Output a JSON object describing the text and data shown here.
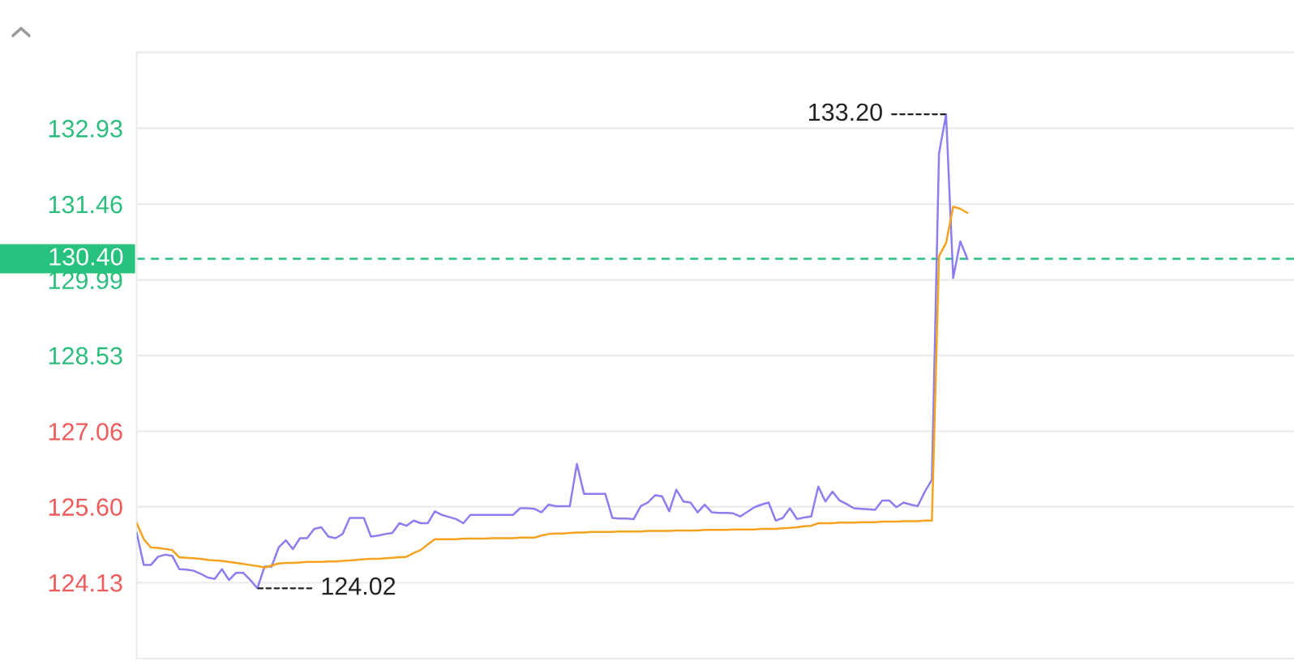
{
  "chart_data": {
    "type": "line",
    "categories": [
      null,
      null,
      null,
      null,
      null,
      null,
      null,
      null,
      null,
      null,
      null,
      null,
      null,
      null,
      null,
      null,
      null,
      null,
      null,
      null,
      null,
      null,
      null,
      null,
      null,
      null,
      null,
      null,
      null,
      null,
      null,
      null,
      null,
      null,
      null,
      null,
      null,
      null,
      null,
      null,
      null,
      null,
      null,
      null,
      null,
      null,
      null,
      null,
      null,
      null,
      null,
      null,
      null,
      null,
      null,
      null,
      null,
      null,
      null,
      null,
      null,
      null,
      null,
      null,
      null,
      null,
      null,
      null,
      null,
      null,
      null,
      null,
      null,
      null,
      null,
      null,
      null,
      null,
      null,
      null,
      null,
      null,
      null,
      null,
      null,
      null,
      null,
      null,
      null,
      null,
      null,
      null,
      null,
      null,
      null,
      null,
      null,
      null,
      null,
      null,
      null,
      null,
      null,
      null,
      null,
      null,
      null,
      null,
      null,
      null,
      null,
      null,
      null,
      null,
      null,
      null,
      null,
      null,
      null,
      null,
      null,
      null,
      null,
      null,
      null,
      null,
      null,
      null,
      null,
      null,
      null,
      null,
      null,
      null,
      null,
      null,
      null,
      null,
      null,
      null,
      null,
      null,
      null,
      null,
      null,
      null,
      null,
      null,
      null,
      null,
      null,
      null,
      null,
      null,
      null,
      null,
      null,
      null,
      null,
      null,
      null,
      null,
      null,
      null
    ],
    "series": [
      {
        "color": "#8b7ff0",
        "values": [
          125.09,
          124.47,
          124.47,
          124.63,
          124.67,
          124.65,
          124.39,
          124.38,
          124.36,
          124.3,
          124.23,
          124.2,
          124.39,
          124.18,
          124.32,
          124.32,
          124.18,
          124.02,
          124.44,
          124.44,
          124.81,
          124.95,
          124.78,
          124.99,
          124.99,
          125.17,
          125.2,
          125.02,
          124.99,
          125.07,
          125.38,
          125.38,
          125.38,
          125.02,
          125.04,
          125.07,
          125.09,
          125.28,
          125.23,
          125.33,
          125.28,
          125.28,
          125.51,
          125.44,
          125.4,
          125.36,
          125.28,
          125.44,
          125.44,
          125.44,
          125.44,
          125.44,
          125.44,
          125.44,
          125.57,
          125.57,
          125.56,
          125.49,
          125.64,
          125.61,
          125.61,
          125.61,
          126.43,
          125.85,
          125.85,
          125.85,
          125.85,
          125.38,
          125.37,
          125.37,
          125.36,
          125.61,
          125.68,
          125.82,
          125.8,
          125.51,
          125.93,
          125.7,
          125.68,
          125.49,
          125.64,
          125.49,
          125.48,
          125.48,
          125.47,
          125.41,
          125.5,
          125.59,
          125.64,
          125.68,
          125.33,
          125.38,
          125.57,
          125.36,
          125.39,
          125.41,
          125.99,
          125.7,
          125.89,
          125.72,
          125.65,
          125.57,
          125.56,
          125.55,
          125.54,
          125.72,
          125.72,
          125.59,
          125.68,
          125.64,
          125.61,
          125.89,
          126.12,
          132.44,
          133.2,
          130.03,
          130.74,
          130.4,
          null,
          null,
          null,
          null,
          null,
          null,
          null,
          null,
          null,
          null,
          null,
          null,
          null,
          null,
          null,
          null,
          null,
          null,
          null,
          null,
          null,
          null,
          null,
          null,
          null,
          null,
          null,
          null,
          null,
          null,
          null,
          null,
          null,
          null,
          null,
          null,
          null,
          null,
          null,
          null,
          null,
          null,
          null,
          null,
          null,
          null
        ]
      },
      {
        "color": "#f5a31f",
        "values": [
          125.28,
          124.97,
          124.81,
          124.8,
          124.78,
          124.76,
          124.62,
          124.61,
          124.6,
          124.59,
          124.57,
          124.56,
          124.55,
          124.53,
          124.51,
          124.49,
          124.47,
          124.45,
          124.42,
          124.46,
          124.5,
          124.51,
          124.51,
          124.52,
          124.53,
          124.53,
          124.53,
          124.54,
          124.54,
          124.55,
          124.56,
          124.57,
          124.58,
          124.59,
          124.59,
          124.6,
          124.61,
          124.62,
          124.63,
          124.7,
          124.76,
          124.87,
          124.97,
          124.97,
          124.97,
          124.97,
          124.98,
          124.98,
          124.98,
          124.98,
          124.99,
          124.99,
          124.99,
          124.99,
          125.0,
          125.0,
          125.0,
          125.04,
          125.07,
          125.08,
          125.08,
          125.09,
          125.1,
          125.1,
          125.11,
          125.11,
          125.11,
          125.11,
          125.12,
          125.12,
          125.12,
          125.12,
          125.13,
          125.13,
          125.13,
          125.13,
          125.14,
          125.14,
          125.14,
          125.14,
          125.15,
          125.15,
          125.15,
          125.15,
          125.16,
          125.16,
          125.16,
          125.16,
          125.17,
          125.17,
          125.17,
          125.18,
          125.19,
          125.2,
          125.22,
          125.23,
          125.28,
          125.28,
          125.28,
          125.29,
          125.29,
          125.29,
          125.3,
          125.3,
          125.3,
          125.31,
          125.31,
          125.31,
          125.32,
          125.32,
          125.32,
          125.33,
          125.33,
          130.45,
          130.71,
          131.41,
          131.37,
          131.29,
          null,
          null,
          null,
          null,
          null,
          null,
          null,
          null,
          null,
          null,
          null,
          null,
          null,
          null,
          null,
          null,
          null,
          null,
          null,
          null,
          null,
          null,
          null,
          null,
          null,
          null,
          null,
          null,
          null,
          null,
          null,
          null,
          null,
          null,
          null,
          null,
          null,
          null,
          null,
          null,
          null,
          null,
          null,
          null,
          null,
          null
        ]
      }
    ],
    "ylim": [
      122.66,
      134.4
    ],
    "yticks": [
      {
        "value": 122.66,
        "label": null
      },
      124.13,
      {
        "value": 125.6,
        "label": "125.60"
      },
      127.06,
      128.53,
      129.99,
      131.46,
      132.93,
      {
        "value": 134.4,
        "label": null
      }
    ],
    "tick_labels": "y",
    "grid": "y",
    "ref_lines": [
      {
        "axis": "y",
        "value": 130.4,
        "label": "130.40",
        "color": "#27c27d",
        "line_style": "dashed"
      }
    ],
    "annotations": [
      "124.02",
      "133.20"
    ]
  }
}
